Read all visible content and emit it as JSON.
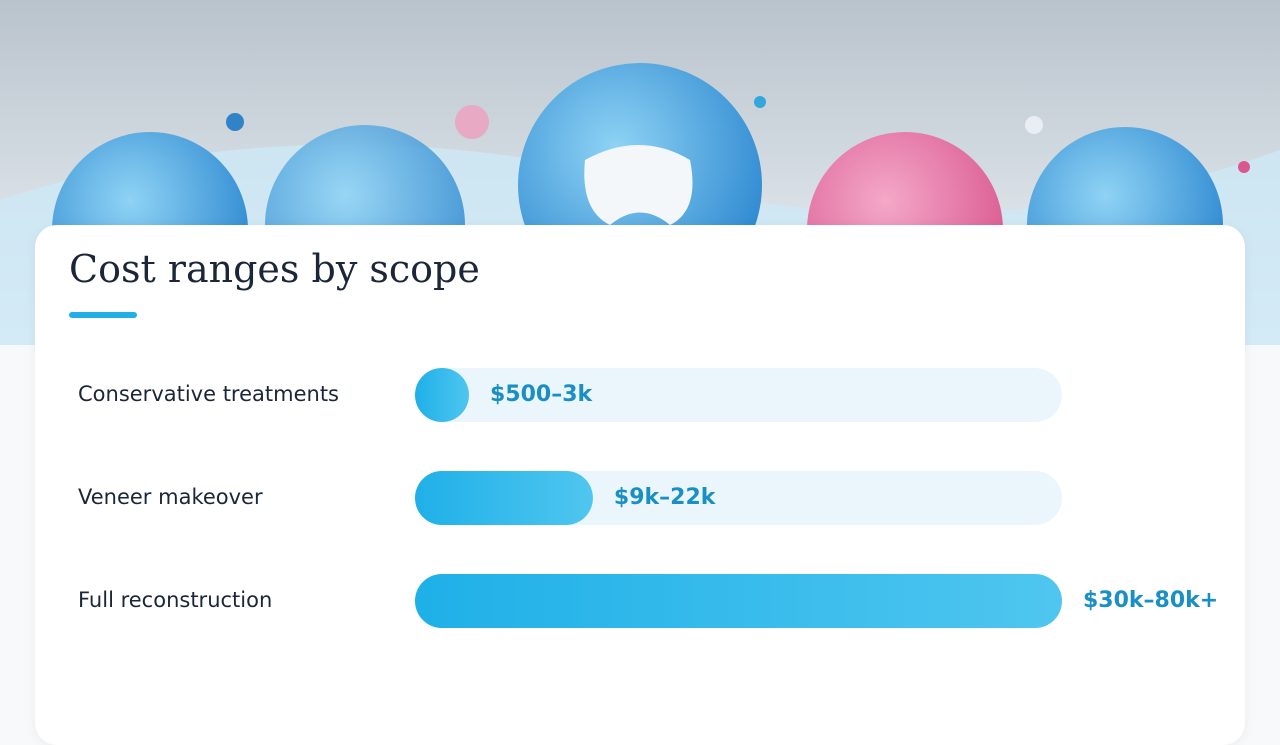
{
  "chart_data": {
    "type": "bar",
    "orientation": "horizontal",
    "title": "Cost ranges by scope",
    "categories": [
      "Conservative treatments",
      "Veneer makeover",
      "Full reconstruction"
    ],
    "values": [
      3,
      22,
      80
    ],
    "value_labels": [
      "$500–3k",
      "$9k–22k",
      "$30k–80k+"
    ],
    "xlim": [
      0,
      80
    ],
    "color": "#20b2ea",
    "track_color": "#ebf6fc"
  }
}
